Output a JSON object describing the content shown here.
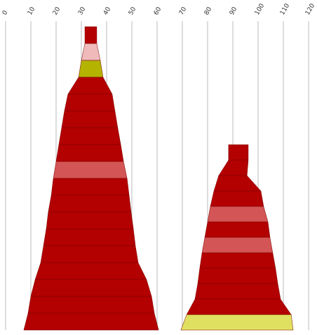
{
  "chart_data": {
    "type": "funnel",
    "xlim": [
      0,
      120
    ],
    "xticks": [
      0,
      10,
      20,
      30,
      40,
      50,
      60,
      70,
      80,
      90,
      100,
      110,
      120
    ],
    "grid": true,
    "stacks": [
      {
        "bands": [
          {
            "color": "#b30000",
            "values": [
              31.4,
              36.1
            ]
          },
          {
            "color": "#f0baba",
            "values": [
              30,
              37.5
            ]
          },
          {
            "color": "#b3b300",
            "values": [
              28.9,
              38.6
            ]
          },
          {
            "color": "#b30000",
            "values": [
              24.7,
              42.2
            ]
          },
          {
            "color": "#b30000",
            "values": [
              23.3,
              43.3
            ]
          },
          {
            "color": "#b30000",
            "values": [
              22.2,
              44.4
            ]
          },
          {
            "color": "#b30000",
            "values": [
              21.1,
              45.6
            ]
          },
          {
            "color": "#b30000",
            "values": [
              20,
              46.7
            ]
          },
          {
            "color": "#d35555",
            "values": [
              18.9,
              48.1
            ]
          },
          {
            "color": "#b30000",
            "values": [
              18.1,
              48.9
            ]
          },
          {
            "color": "#b30000",
            "values": [
              16.9,
              49.7
            ]
          },
          {
            "color": "#b30000",
            "values": [
              16.1,
              50.6
            ]
          },
          {
            "color": "#b30000",
            "values": [
              15,
              51.4
            ]
          },
          {
            "color": "#b30000",
            "values": [
              13.9,
              52.5
            ]
          },
          {
            "color": "#b30000",
            "values": [
              11.7,
              55.8
            ]
          },
          {
            "color": "#b30000",
            "values": [
              10,
              57.8
            ]
          },
          {
            "color": "#b30000",
            "values": [
              8.9,
              58.9
            ]
          },
          {
            "color": "#b30000",
            "values": [
              7.2,
              60.6
            ]
          }
        ]
      },
      {
        "bands": [
          {
            "color": "#b30000",
            "values": [
              88.3,
              96.1
            ]
          },
          {
            "color": "#b30000",
            "values": [
              84.4,
              95.6
            ]
          },
          {
            "color": "#b30000",
            "values": [
              82.5,
              101.1
            ]
          },
          {
            "color": "#b30000",
            "values": [
              81.1,
              102.2
            ]
          },
          {
            "color": "#d35555",
            "values": [
              80,
              103.9
            ]
          },
          {
            "color": "#b30000",
            "values": [
              78.9,
              104.7
            ]
          },
          {
            "color": "#d35555",
            "values": [
              77.8,
              105.8
            ]
          },
          {
            "color": "#b30000",
            "values": [
              76.9,
              106.9
            ]
          },
          {
            "color": "#b30000",
            "values": [
              76.1,
              107.8
            ]
          },
          {
            "color": "#b30000",
            "values": [
              75,
              108.9
            ]
          },
          {
            "color": "#b30000",
            "values": [
              71.7,
              113.1
            ]
          },
          {
            "color": "#e0e060",
            "values": [
              69.4,
              113.9
            ]
          }
        ]
      }
    ]
  }
}
